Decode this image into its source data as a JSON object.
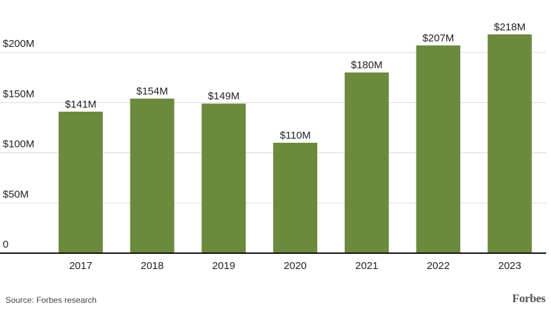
{
  "chart_data": {
    "type": "bar",
    "categories": [
      "2017",
      "2018",
      "2019",
      "2020",
      "2021",
      "2022",
      "2023"
    ],
    "values": [
      141,
      154,
      149,
      110,
      180,
      207,
      218
    ],
    "data_labels": [
      "$141M",
      "$154M",
      "$149M",
      "$110M",
      "$180M",
      "$207M",
      "$218M"
    ],
    "y_ticks": [
      {
        "value": 0,
        "label": "0"
      },
      {
        "value": 50,
        "label": "$50M"
      },
      {
        "value": 100,
        "label": "$100M"
      },
      {
        "value": 150,
        "label": "$150M"
      },
      {
        "value": 200,
        "label": "$200M"
      }
    ],
    "ylim": [
      0,
      200
    ],
    "grid": true,
    "bar_color": "#6b8a3e",
    "grid_color": "#d9d9d9",
    "axis_color": "#111111"
  },
  "footer": {
    "source": "Source: Forbes research",
    "logo": "Forbes"
  }
}
